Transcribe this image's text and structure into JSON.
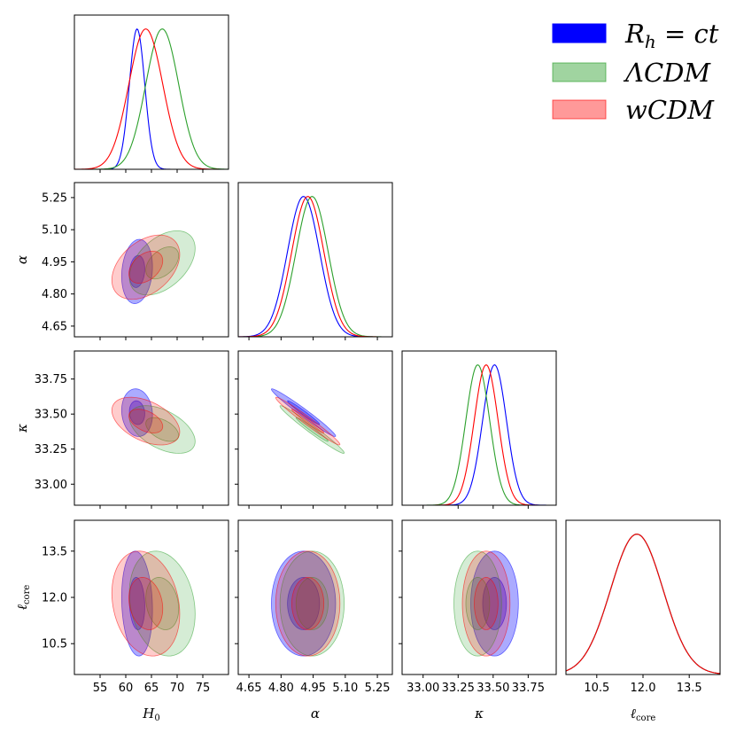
{
  "chart_data": {
    "type": "corner",
    "parameters": [
      {
        "id": "H0",
        "label_main": "H",
        "label_sub": "0",
        "range": [
          50,
          80
        ],
        "ticks": [
          55,
          60,
          65,
          70,
          75
        ],
        "tick_labels": [
          "55",
          "60",
          "65",
          "70",
          "75"
        ]
      },
      {
        "id": "alpha",
        "label_main": "α",
        "label_sub": "",
        "range": [
          4.6,
          5.32
        ],
        "ticks": [
          4.65,
          4.8,
          4.95,
          5.1,
          5.25
        ],
        "tick_labels": [
          "4.65",
          "4.80",
          "4.95",
          "5.10",
          "5.25"
        ]
      },
      {
        "id": "kappa",
        "label_main": "κ",
        "label_sub": "",
        "range": [
          32.85,
          33.95
        ],
        "ticks": [
          33.0,
          33.25,
          33.5,
          33.75
        ],
        "tick_labels": [
          "33.00",
          "33.25",
          "33.50",
          "33.75"
        ]
      },
      {
        "id": "lcore",
        "label_main": "ℓ",
        "label_sub": "core",
        "range": [
          9.5,
          14.5
        ],
        "ticks": [
          10.5,
          12.0,
          13.5
        ],
        "tick_labels": [
          "10.5",
          "12.0",
          "13.5"
        ]
      }
    ],
    "series": [
      {
        "name": "Rh=ct",
        "color": "#0000ff",
        "fill_opacity": 0.33,
        "means": {
          "H0": 62.2,
          "alpha": 4.905,
          "kappa": 33.51,
          "lcore": 11.8
        },
        "sigmas": {
          "H0": 1.5,
          "alpha": 0.075,
          "kappa": 0.085,
          "lcore": 0.85
        },
        "correlations": {
          "H0|alpha": 0.15,
          "H0|kappa": -0.1,
          "H0|lcore": -0.12,
          "alpha|kappa": -0.98,
          "alpha|lcore": 0.0,
          "kappa|lcore": 0.0
        }
      },
      {
        "name": "ΛCDM",
        "color": "#2ca02c",
        "fill_opacity": 0.2,
        "means": {
          "H0": 67.1,
          "alpha": 4.945,
          "kappa": 33.39,
          "lcore": 11.8
        },
        "sigmas": {
          "H0": 3.2,
          "alpha": 0.075,
          "kappa": 0.085,
          "lcore": 0.85
        },
        "correlations": {
          "H0|alpha": 0.45,
          "H0|kappa": -0.5,
          "H0|lcore": -0.2,
          "alpha|kappa": -0.98,
          "alpha|lcore": 0.0,
          "kappa|lcore": 0.0
        }
      },
      {
        "name": "wCDM",
        "color": "#ff0000",
        "fill_opacity": 0.2,
        "means": {
          "H0": 63.9,
          "alpha": 4.925,
          "kappa": 33.45,
          "lcore": 11.8
        },
        "sigmas": {
          "H0": 3.3,
          "alpha": 0.075,
          "kappa": 0.085,
          "lcore": 0.85
        },
        "correlations": {
          "H0|alpha": 0.4,
          "H0|kappa": -0.45,
          "H0|lcore": -0.2,
          "alpha|kappa": -0.98,
          "alpha|lcore": 0.0,
          "kappa|lcore": 0.0
        }
      }
    ],
    "legend": {
      "placement": "top-right",
      "entries": [
        {
          "main": "R",
          "sub": "h",
          "rest": " = ct",
          "color": "#0000ff",
          "opacity": 1.0
        },
        {
          "main": "ΛCDM",
          "sub": "",
          "rest": "",
          "color": "#2ca02c",
          "opacity": 0.45
        },
        {
          "main": "wCDM",
          "sub": "",
          "rest": "",
          "color": "#ff0000",
          "opacity": 0.4
        }
      ]
    },
    "contour_levels_sigma": [
      1,
      2
    ]
  }
}
